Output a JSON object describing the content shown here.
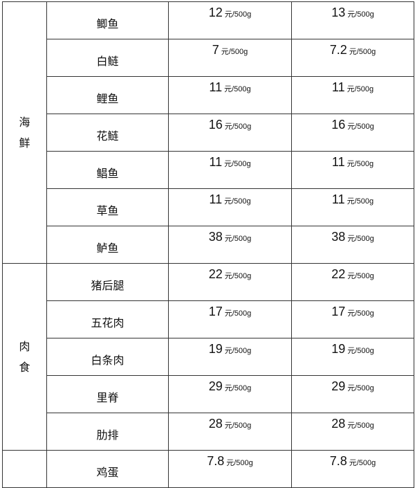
{
  "unit": "元/500g",
  "groups": [
    {
      "category": [
        "海",
        "鲜"
      ],
      "items": [
        {
          "name": "鲫鱼",
          "price1": "12",
          "price2": "13"
        },
        {
          "name": "白鲢",
          "price1": "7",
          "price2": "7.2"
        },
        {
          "name": "鲤鱼",
          "price1": "11",
          "price2": "11"
        },
        {
          "name": "花鲢",
          "price1": "16",
          "price2": "16"
        },
        {
          "name": "鲳鱼",
          "price1": "11",
          "price2": "11"
        },
        {
          "name": "草鱼",
          "price1": "11",
          "price2": "11"
        },
        {
          "name": "鲈鱼",
          "price1": "38",
          "price2": "38"
        }
      ]
    },
    {
      "category": [
        "肉",
        "食"
      ],
      "items": [
        {
          "name": "猪后腿",
          "price1": "22",
          "price2": "22"
        },
        {
          "name": "五花肉",
          "price1": "17",
          "price2": "17"
        },
        {
          "name": "白条肉",
          "price1": "19",
          "price2": "19"
        },
        {
          "name": "里脊",
          "price1": "29",
          "price2": "29"
        },
        {
          "name": "肋排",
          "price1": "28",
          "price2": "28"
        }
      ]
    },
    {
      "category": [],
      "items": [
        {
          "name": "鸡蛋",
          "price1": "7.8",
          "price2": "7.8"
        }
      ]
    }
  ]
}
